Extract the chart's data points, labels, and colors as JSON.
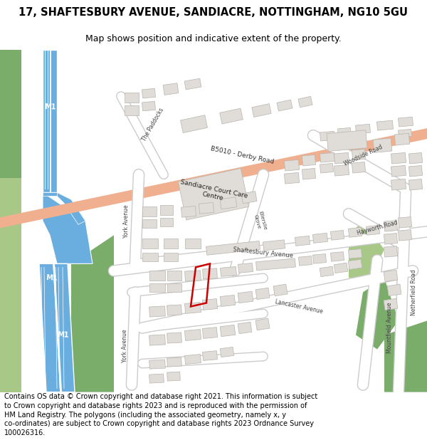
{
  "title_line1": "17, SHAFTESBURY AVENUE, SANDIACRE, NOTTINGHAM, NG10 5GU",
  "title_line2": "Map shows position and indicative extent of the property.",
  "footer_text": "Contains OS data © Crown copyright and database right 2021. This information is subject to Crown copyright and database rights 2023 and is reproduced with the permission of\nHM Land Registry. The polygons (including the associated geometry, namely x, y co-ordinates) are subject to Crown copyright and database rights 2023 Ordnance Survey\n100026316.",
  "bg_color": "#ffffff",
  "map_bg": "#f5f3f0",
  "road_bg": "#ffffff",
  "road_outline": "#cccccc",
  "road_main_color": "#f0b090",
  "building_color": "#e0ddd8",
  "building_edge": "#b8b5b0",
  "motorway_color": "#6aaee0",
  "motorway_line": "#ffffff",
  "green_dark": "#7aac6a",
  "green_light": "#a8c888",
  "plot_color": "#cc0000",
  "text_color": "#444444",
  "title_fontsize": 10.5,
  "subtitle_fontsize": 9.0,
  "footer_fontsize": 7.0
}
